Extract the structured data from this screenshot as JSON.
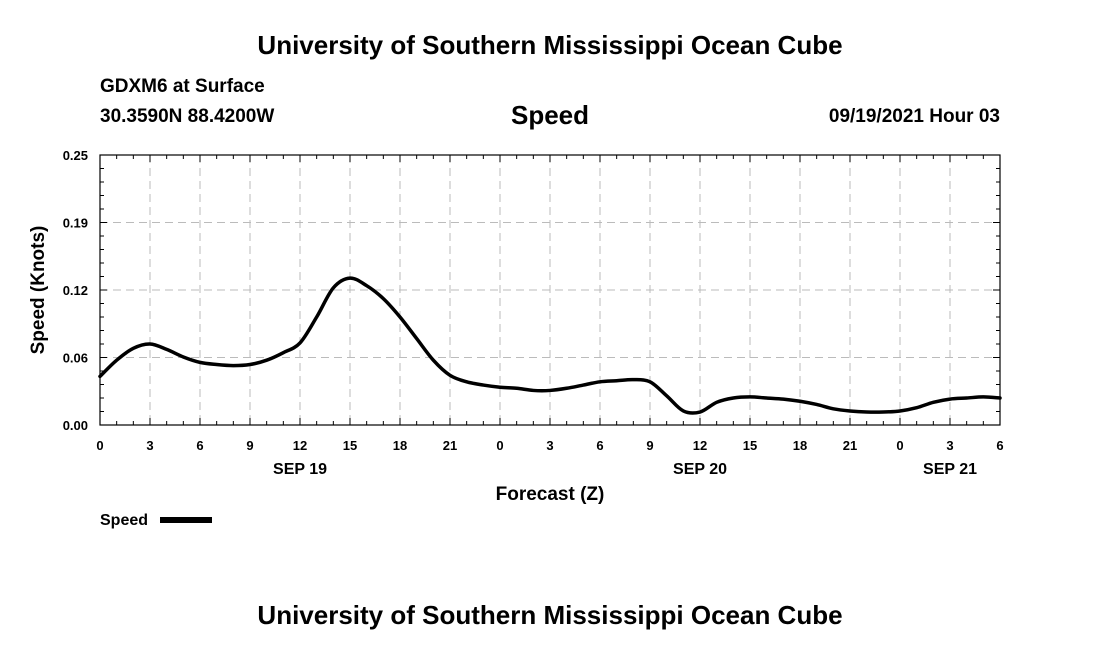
{
  "header": {
    "title": "University of Southern Mississippi Ocean Cube",
    "station": "GDXM6 at Surface",
    "coords": "30.3590N  88.4200W",
    "chart_title": "Speed",
    "datetime": "09/19/2021 Hour 03"
  },
  "footer": {
    "title": "University of Southern Mississippi Ocean Cube"
  },
  "colors": {
    "line": "#000000",
    "grid": "#bbbbbb",
    "axis": "#000000"
  },
  "chart_data": {
    "type": "line",
    "title": "Speed",
    "xlabel": "Forecast (Z)",
    "ylabel": "Speed (Knots)",
    "xlim": [
      0,
      54
    ],
    "ylim": [
      0,
      0.25
    ],
    "grid": true,
    "yticks": [
      {
        "value": 0,
        "label": "0.00"
      },
      {
        "value": 0.0625,
        "label": "0.06"
      },
      {
        "value": 0.125,
        "label": "0.12"
      },
      {
        "value": 0.1875,
        "label": "0.19"
      },
      {
        "value": 0.25,
        "label": "0.25"
      }
    ],
    "xticks": [
      {
        "value": 0,
        "label": "0"
      },
      {
        "value": 3,
        "label": "3"
      },
      {
        "value": 6,
        "label": "6"
      },
      {
        "value": 9,
        "label": "9"
      },
      {
        "value": 12,
        "label": "12"
      },
      {
        "value": 15,
        "label": "15"
      },
      {
        "value": 18,
        "label": "18"
      },
      {
        "value": 21,
        "label": "21"
      },
      {
        "value": 24,
        "label": "0"
      },
      {
        "value": 27,
        "label": "3"
      },
      {
        "value": 30,
        "label": "6"
      },
      {
        "value": 33,
        "label": "9"
      },
      {
        "value": 36,
        "label": "12"
      },
      {
        "value": 39,
        "label": "15"
      },
      {
        "value": 42,
        "label": "18"
      },
      {
        "value": 45,
        "label": "21"
      },
      {
        "value": 48,
        "label": "0"
      },
      {
        "value": 51,
        "label": "3"
      },
      {
        "value": 54,
        "label": "6"
      }
    ],
    "date_labels": [
      {
        "value": 12,
        "label": "SEP 19"
      },
      {
        "value": 36,
        "label": "SEP 20"
      },
      {
        "value": 51,
        "label": "SEP 21"
      }
    ],
    "legend": {
      "label": "Speed",
      "placement": "bottom-left"
    },
    "series": [
      {
        "name": "Speed",
        "x": [
          0,
          1,
          2,
          3,
          4,
          5,
          6,
          7,
          8,
          9,
          10,
          11,
          12,
          13,
          14,
          15,
          16,
          17,
          18,
          19,
          20,
          21,
          22,
          23,
          24,
          25,
          26,
          27,
          28,
          29,
          30,
          31,
          32,
          33,
          34,
          35,
          36,
          37,
          38,
          39,
          40,
          41,
          42,
          43,
          44,
          45,
          46,
          47,
          48,
          49,
          50,
          51,
          52,
          53,
          54
        ],
        "values": [
          0.045,
          0.06,
          0.071,
          0.075,
          0.07,
          0.063,
          0.058,
          0.056,
          0.055,
          0.056,
          0.06,
          0.067,
          0.076,
          0.1,
          0.127,
          0.136,
          0.129,
          0.117,
          0.1,
          0.08,
          0.06,
          0.046,
          0.04,
          0.037,
          0.035,
          0.034,
          0.032,
          0.032,
          0.034,
          0.037,
          0.04,
          0.041,
          0.042,
          0.04,
          0.027,
          0.013,
          0.012,
          0.021,
          0.025,
          0.026,
          0.025,
          0.024,
          0.022,
          0.019,
          0.015,
          0.013,
          0.012,
          0.012,
          0.013,
          0.016,
          0.021,
          0.024,
          0.025,
          0.026,
          0.025
        ]
      }
    ]
  }
}
